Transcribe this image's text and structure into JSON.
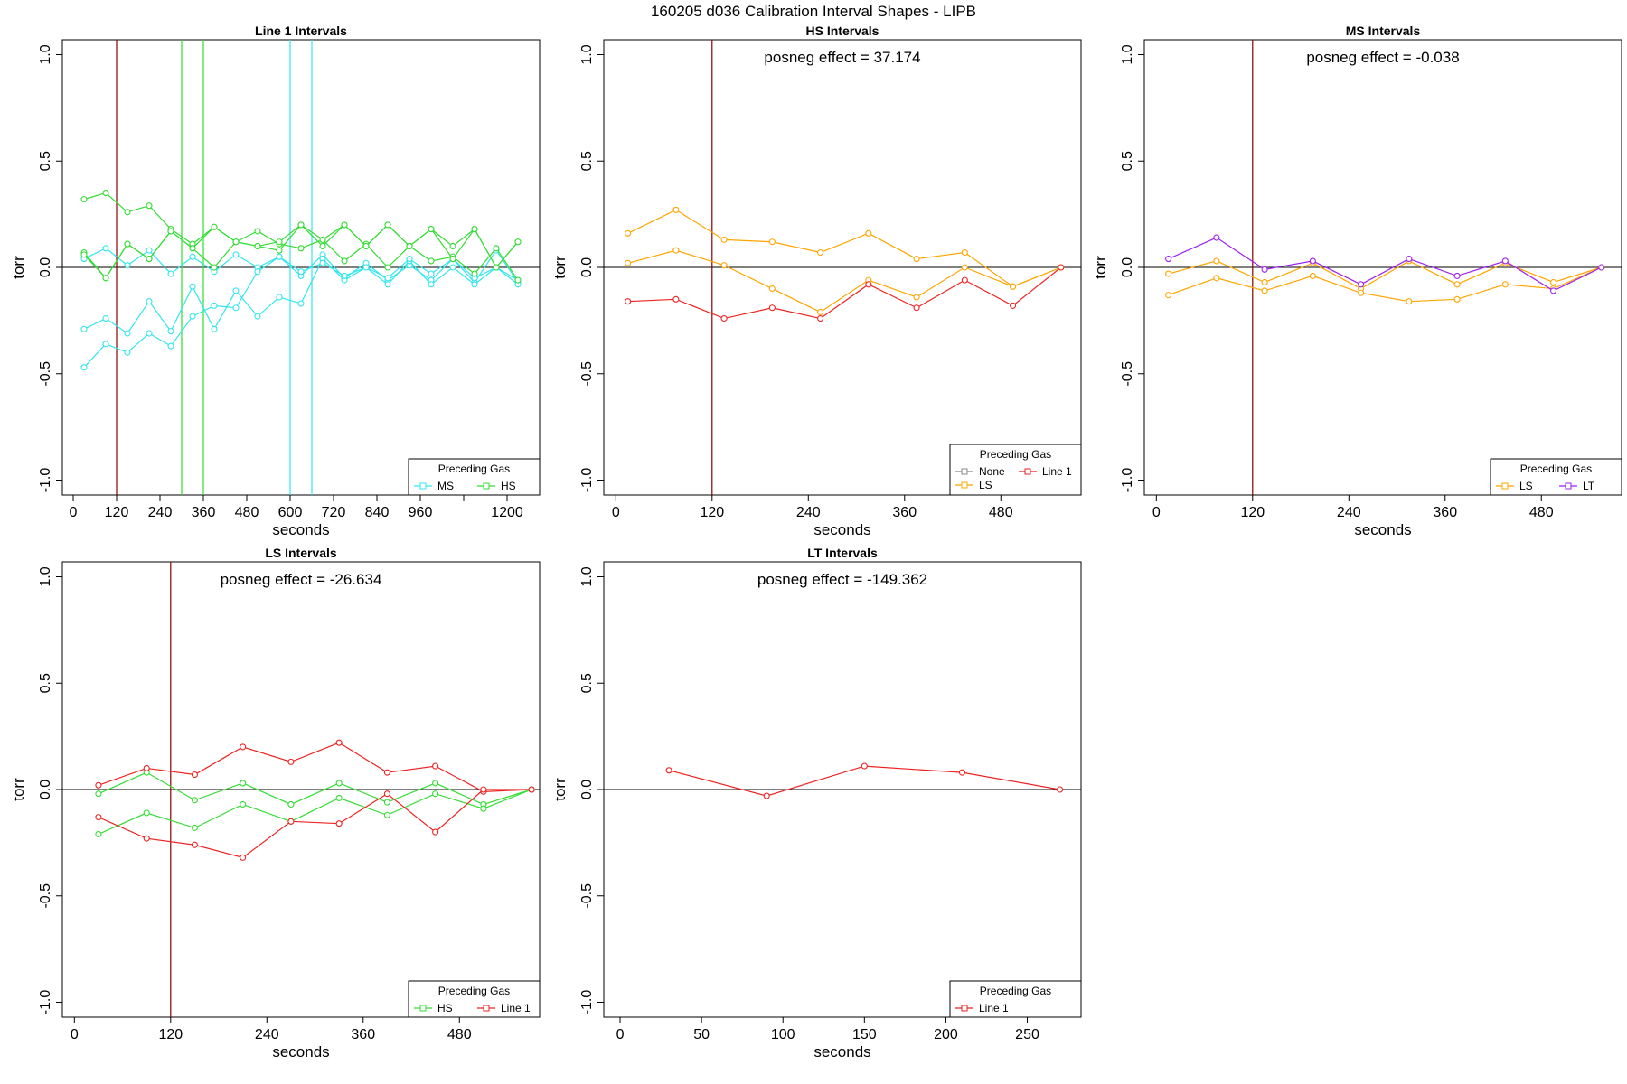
{
  "figure_title": "160205   d036   Calibration Interval Shapes - LIPB",
  "colors": {
    "MS": "#33e6ee",
    "HS": "#33dd33",
    "LS": "#ffa500",
    "Line 1": "#ee2222",
    "LT": "#a020f0",
    "None": "#888888",
    "vline_dark": "#8b0000"
  },
  "chart_data": [
    {
      "type": "line",
      "title": "Line 1 Intervals",
      "xlabel": "seconds",
      "ylabel": "torr",
      "xlim": [
        -30,
        1290
      ],
      "ylim": [
        -1.07,
        1.07
      ],
      "xticks": [
        0,
        120,
        240,
        360,
        480,
        600,
        720,
        840,
        960,
        1080,
        1200
      ],
      "xtick_labels": [
        "0",
        "120",
        "240",
        "360",
        "480",
        "600",
        "720",
        "840",
        "960",
        "",
        "1200"
      ],
      "yticks": [
        -1.0,
        -0.5,
        0.0,
        0.5,
        1.0
      ],
      "ytick_labels": [
        "-1.0",
        "-0.5",
        "0.0",
        "0.5",
        "1.0"
      ],
      "hline": 0,
      "posneg": "",
      "vlines": [
        {
          "x": 120,
          "color": "vline_dark"
        },
        {
          "x": 300,
          "color": "HS"
        },
        {
          "x": 360,
          "color": "HS"
        },
        {
          "x": 600,
          "color": "MS"
        },
        {
          "x": 660,
          "color": "MS"
        }
      ],
      "series": [
        {
          "name": "MS",
          "color": "MS",
          "x": [
            30,
            90,
            150,
            210,
            270,
            330,
            390,
            450,
            510,
            570,
            630,
            690,
            750,
            810,
            870,
            930,
            990,
            1050,
            1110,
            1170,
            1230
          ],
          "y": [
            0.04,
            0.09,
            0.01,
            0.08,
            -0.03,
            0.05,
            -0.02,
            0.06,
            0.0,
            0.05,
            -0.04,
            0.06,
            -0.05,
            0.02,
            -0.06,
            0.01,
            -0.06,
            0.04,
            -0.07,
            0.08,
            -0.07
          ]
        },
        {
          "name": "MS",
          "color": "MS",
          "x": [
            30,
            90,
            150,
            210,
            270,
            330,
            390,
            450,
            510,
            570,
            630,
            690,
            750,
            810,
            870,
            930,
            990,
            1050,
            1110,
            1170,
            1230
          ],
          "y": [
            -0.29,
            -0.24,
            -0.31,
            -0.16,
            -0.3,
            -0.09,
            -0.29,
            -0.11,
            -0.23,
            -0.14,
            -0.17,
            0.04,
            -0.06,
            0.0,
            -0.08,
            0.03,
            -0.08,
            0.0,
            -0.08,
            0.0,
            -0.08
          ]
        },
        {
          "name": "MS",
          "color": "MS",
          "x": [
            30,
            90,
            150,
            210,
            270,
            330,
            390,
            450,
            510,
            570,
            630,
            690,
            750,
            810,
            870,
            930,
            990,
            1050,
            1110,
            1170,
            1230
          ],
          "y": [
            -0.47,
            -0.36,
            -0.4,
            -0.31,
            -0.37,
            -0.23,
            -0.18,
            -0.19,
            -0.02,
            0.05,
            -0.02,
            0.02,
            -0.04,
            0.0,
            -0.05,
            0.04,
            -0.03,
            0.04,
            -0.05,
            0.0,
            -0.06
          ]
        },
        {
          "name": "HS",
          "color": "HS",
          "x": [
            30,
            90,
            150,
            210,
            270,
            330,
            390,
            450,
            510,
            570,
            630,
            690,
            750,
            810,
            870,
            930,
            990,
            1050,
            1110,
            1170,
            1230
          ],
          "y": [
            0.32,
            0.35,
            0.26,
            0.29,
            0.18,
            0.11,
            0.19,
            0.12,
            0.17,
            0.11,
            0.09,
            0.13,
            0.03,
            0.11,
            0.0,
            0.1,
            0.03,
            0.05,
            -0.03,
            0.09,
            -0.06
          ]
        },
        {
          "name": "HS",
          "color": "HS",
          "x": [
            30,
            90,
            150,
            210,
            270,
            330,
            390,
            450,
            510,
            570,
            630,
            690,
            750,
            810,
            870,
            930,
            990,
            1050,
            1110,
            1170,
            1230
          ],
          "y": [
            0.07,
            -0.05,
            0.11,
            0.04,
            0.17,
            0.09,
            0.0,
            0.12,
            0.1,
            0.08,
            0.2,
            0.1,
            0.2,
            0.1,
            0.2,
            0.1,
            0.18,
            0.1,
            0.18,
            0.0,
            0.12
          ]
        },
        {
          "name": "HS",
          "color": "HS",
          "x": [
            30,
            90,
            150,
            210,
            270,
            330,
            390,
            450,
            510,
            570,
            630,
            690,
            750,
            810,
            870,
            930,
            990,
            1050,
            1110,
            1170,
            1230
          ],
          "y": [
            0.06,
            -0.05,
            0.11,
            0.04,
            0.17,
            0.09,
            0.19,
            0.12,
            0.1,
            0.12,
            0.2,
            0.13,
            0.2,
            0.1,
            0.2,
            0.1,
            0.18,
            0.04,
            0.18,
            0.0,
            0.12
          ]
        }
      ],
      "legend": {
        "title": "Preceding Gas",
        "position": "bottom-right",
        "cols": 2,
        "entries": [
          {
            "label": "MS",
            "color": "MS"
          },
          {
            "label": "HS",
            "color": "HS"
          }
        ]
      }
    },
    {
      "type": "line",
      "title": "HS Intervals",
      "xlabel": "seconds",
      "ylabel": "torr",
      "xlim": [
        -15,
        580
      ],
      "ylim": [
        -1.07,
        1.07
      ],
      "xticks": [
        0,
        120,
        240,
        360,
        480
      ],
      "xtick_labels": [
        "0",
        "120",
        "240",
        "360",
        "480"
      ],
      "yticks": [
        -1.0,
        -0.5,
        0.0,
        0.5,
        1.0
      ],
      "ytick_labels": [
        "-1.0",
        "-0.5",
        "0.0",
        "0.5",
        "1.0"
      ],
      "hline": 0,
      "posneg": "posneg effect = 37.174",
      "vlines": [
        {
          "x": 120,
          "color": "vline_dark"
        }
      ],
      "series": [
        {
          "name": "LS",
          "color": "LS",
          "x": [
            15,
            75,
            135,
            195,
            255,
            315,
            375,
            435,
            495,
            555
          ],
          "y": [
            0.16,
            0.27,
            0.13,
            0.12,
            0.07,
            0.16,
            0.04,
            0.07,
            -0.09,
            0.0
          ]
        },
        {
          "name": "LS",
          "color": "LS",
          "x": [
            15,
            75,
            135,
            195,
            255,
            315,
            375,
            435,
            495,
            555
          ],
          "y": [
            0.02,
            0.08,
            0.01,
            -0.1,
            -0.21,
            -0.06,
            -0.14,
            0.0,
            -0.09,
            0.0
          ]
        },
        {
          "name": "Line 1",
          "color": "Line 1",
          "x": [
            15,
            75,
            135,
            195,
            255,
            315,
            375,
            435,
            495,
            555
          ],
          "y": [
            -0.16,
            -0.15,
            -0.24,
            -0.19,
            -0.24,
            -0.08,
            -0.19,
            -0.06,
            -0.18,
            0.0
          ]
        }
      ],
      "legend": {
        "title": "Preceding Gas",
        "position": "bottom-right",
        "cols": 2,
        "entries": [
          {
            "label": "None",
            "color": "None"
          },
          {
            "label": "Line 1",
            "color": "Line 1"
          },
          {
            "label": "LS",
            "color": "LS"
          }
        ]
      }
    },
    {
      "type": "line",
      "title": "MS Intervals",
      "xlabel": "seconds",
      "ylabel": "torr",
      "xlim": [
        -15,
        580
      ],
      "ylim": [
        -1.07,
        1.07
      ],
      "xticks": [
        0,
        120,
        240,
        360,
        480
      ],
      "xtick_labels": [
        "0",
        "120",
        "240",
        "360",
        "480"
      ],
      "yticks": [
        -1.0,
        -0.5,
        0.0,
        0.5,
        1.0
      ],
      "ytick_labels": [
        "-1.0",
        "-0.5",
        "0.0",
        "0.5",
        "1.0"
      ],
      "hline": 0,
      "posneg": "posneg effect = -0.038",
      "vlines": [
        {
          "x": 120,
          "color": "vline_dark"
        }
      ],
      "series": [
        {
          "name": "LS",
          "color": "LS",
          "x": [
            15,
            75,
            135,
            195,
            255,
            315,
            375,
            435,
            495,
            555
          ],
          "y": [
            -0.03,
            0.03,
            -0.07,
            0.02,
            -0.1,
            0.03,
            -0.08,
            0.02,
            -0.07,
            0.0
          ]
        },
        {
          "name": "LS",
          "color": "LS",
          "x": [
            15,
            75,
            135,
            195,
            255,
            315,
            375,
            435,
            495,
            555
          ],
          "y": [
            -0.13,
            -0.05,
            -0.11,
            -0.04,
            -0.12,
            -0.16,
            -0.15,
            -0.08,
            -0.1,
            0.0
          ]
        },
        {
          "name": "LT",
          "color": "LT",
          "x": [
            15,
            75,
            135,
            195,
            255,
            315,
            375,
            435,
            495,
            555
          ],
          "y": [
            0.04,
            0.14,
            -0.01,
            0.03,
            -0.08,
            0.04,
            -0.04,
            0.03,
            -0.11,
            0.0
          ]
        }
      ],
      "legend": {
        "title": "Preceding Gas",
        "position": "bottom-right",
        "cols": 2,
        "entries": [
          {
            "label": "LS",
            "color": "LS"
          },
          {
            "label": "LT",
            "color": "LT"
          }
        ]
      }
    },
    {
      "type": "line",
      "title": "LS Intervals",
      "xlabel": "seconds",
      "ylabel": "torr",
      "xlim": [
        -15,
        580
      ],
      "ylim": [
        -1.07,
        1.07
      ],
      "xticks": [
        0,
        120,
        240,
        360,
        480
      ],
      "xtick_labels": [
        "0",
        "120",
        "240",
        "360",
        "480"
      ],
      "yticks": [
        -1.0,
        -0.5,
        0.0,
        0.5,
        1.0
      ],
      "ytick_labels": [
        "-1.0",
        "-0.5",
        "0.0",
        "0.5",
        "1.0"
      ],
      "hline": 0,
      "posneg": "posneg effect = -26.634",
      "vlines": [
        {
          "x": 120,
          "color": "vline_dark"
        }
      ],
      "series": [
        {
          "name": "HS",
          "color": "HS",
          "x": [
            30,
            90,
            150,
            210,
            270,
            330,
            390,
            450,
            510,
            570
          ],
          "y": [
            -0.02,
            0.08,
            -0.05,
            0.03,
            -0.07,
            0.03,
            -0.06,
            0.03,
            -0.07,
            0.0
          ]
        },
        {
          "name": "HS",
          "color": "HS",
          "x": [
            30,
            90,
            150,
            210,
            270,
            330,
            390,
            450,
            510,
            570
          ],
          "y": [
            -0.21,
            -0.11,
            -0.18,
            -0.07,
            -0.15,
            -0.04,
            -0.12,
            -0.02,
            -0.09,
            0.0
          ]
        },
        {
          "name": "Line 1",
          "color": "Line 1",
          "x": [
            30,
            90,
            150,
            210,
            270,
            330,
            390,
            450,
            510,
            570
          ],
          "y": [
            0.02,
            0.1,
            0.07,
            0.2,
            0.13,
            0.22,
            0.08,
            0.11,
            -0.01,
            0.0
          ]
        },
        {
          "name": "Line 1",
          "color": "Line 1",
          "x": [
            30,
            90,
            150,
            210,
            270,
            330,
            390,
            450,
            510,
            570
          ],
          "y": [
            -0.13,
            -0.23,
            -0.26,
            -0.32,
            -0.15,
            -0.16,
            -0.02,
            -0.2,
            0.0,
            0.0
          ]
        }
      ],
      "legend": {
        "title": "Preceding Gas",
        "position": "bottom-right",
        "cols": 2,
        "entries": [
          {
            "label": "HS",
            "color": "HS"
          },
          {
            "label": "Line 1",
            "color": "Line 1"
          }
        ]
      }
    },
    {
      "type": "line",
      "title": "LT Intervals",
      "xlabel": "seconds",
      "ylabel": "torr",
      "xlim": [
        -10,
        283
      ],
      "ylim": [
        -1.07,
        1.07
      ],
      "xticks": [
        0,
        50,
        100,
        150,
        200,
        250
      ],
      "xtick_labels": [
        "0",
        "50",
        "100",
        "150",
        "200",
        "250"
      ],
      "yticks": [
        -1.0,
        -0.5,
        0.0,
        0.5,
        1.0
      ],
      "ytick_labels": [
        "-1.0",
        "-0.5",
        "0.0",
        "0.5",
        "1.0"
      ],
      "hline": 0,
      "posneg": "posneg effect = -149.362",
      "vlines": [],
      "series": [
        {
          "name": "Line 1",
          "color": "Line 1",
          "x": [
            30,
            90,
            150,
            210,
            270
          ],
          "y": [
            0.09,
            -0.03,
            0.11,
            0.08,
            0.0
          ]
        }
      ],
      "legend": {
        "title": "Preceding Gas",
        "position": "bottom-right",
        "cols": 2,
        "entries": [
          {
            "label": "Line 1",
            "color": "Line 1"
          }
        ]
      }
    }
  ]
}
